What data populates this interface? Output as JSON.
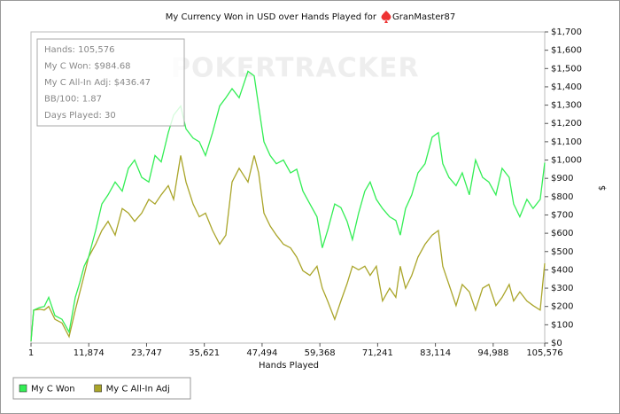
{
  "chart_data": {
    "type": "line",
    "title": "My Currency Won in USD over Hands Played for",
    "player": "GranMaster87",
    "watermark": "POKERTRACKER",
    "x_label": "Hands Played",
    "y_label": "$",
    "info": [
      "Hands: 105,576",
      "My C Won: $984.68",
      "My C All-In Adj: $436.47",
      "BB/100: 1.87",
      "Days Played: 30"
    ],
    "x": [
      1,
      546,
      1820,
      2730,
      3640,
      4914,
      6370,
      7826,
      9100,
      10010,
      10920,
      11830,
      13286,
      14560,
      15834,
      17290,
      18746,
      20020,
      21294,
      22750,
      24206,
      25480,
      26754,
      28210,
      29302,
      30758,
      31850,
      33306,
      34580,
      35854,
      37310,
      38766,
      40040,
      41314,
      42770,
      44590,
      45864,
      46774,
      47866,
      49140,
      50414,
      51870,
      53326,
      54600,
      55874,
      57330,
      58786,
      59878,
      60970,
      62426,
      63700,
      64974,
      66066,
      67340,
      68614,
      69706,
      70980,
      72254,
      73710,
      74984,
      75894,
      76986,
      78260,
      79534,
      80990,
      82446,
      83720,
      84630,
      85904,
      87360,
      88634,
      90090,
      91364,
      92820,
      94094,
      95550,
      96824,
      98280,
      99190,
      100464,
      101920,
      103194,
      104650,
      105576
    ],
    "series": [
      {
        "name": "My C Won",
        "color": "#33ee55",
        "values": [
          10,
          180,
          195,
          200,
          250,
          150,
          130,
          60,
          250,
          330,
          420,
          470,
          615,
          760,
          810,
          880,
          830,
          955,
          1000,
          905,
          880,
          1025,
          990,
          1150,
          1245,
          1295,
          1170,
          1120,
          1100,
          1025,
          1150,
          1295,
          1340,
          1390,
          1340,
          1485,
          1460,
          1295,
          1100,
          1025,
          980,
          1000,
          930,
          950,
          830,
          760,
          690,
          520,
          615,
          760,
          740,
          665,
          565,
          710,
          830,
          880,
          785,
          735,
          690,
          670,
          590,
          735,
          810,
          930,
          980,
          1125,
          1150,
          980,
          905,
          860,
          930,
          810,
          1000,
          905,
          880,
          810,
          955,
          905,
          760,
          690,
          785,
          735,
          785,
          985
        ]
      },
      {
        "name": "My C All-In Adj",
        "color": "#aaa52a",
        "values": [
          10,
          180,
          185,
          180,
          200,
          130,
          110,
          35,
          180,
          275,
          370,
          470,
          540,
          615,
          665,
          590,
          735,
          710,
          665,
          710,
          785,
          760,
          810,
          860,
          785,
          1025,
          880,
          760,
          690,
          710,
          615,
          540,
          590,
          880,
          955,
          880,
          1025,
          930,
          710,
          640,
          590,
          540,
          520,
          470,
          395,
          370,
          420,
          300,
          230,
          130,
          230,
          325,
          420,
          400,
          420,
          370,
          420,
          230,
          300,
          250,
          420,
          300,
          370,
          470,
          540,
          590,
          615,
          420,
          320,
          205,
          320,
          280,
          180,
          300,
          320,
          205,
          250,
          320,
          230,
          280,
          230,
          205,
          180,
          436
        ]
      }
    ],
    "xlim": [
      1,
      105576
    ],
    "xticks": [
      1,
      {
        "value": 11874,
        "label": "11,874"
      },
      {
        "value": 23747,
        "label": "23,747"
      },
      {
        "value": 35621,
        "label": "35,621"
      },
      {
        "value": 47494,
        "label": "47,494"
      },
      {
        "value": 59368,
        "label": "59,368"
      },
      {
        "value": 71241,
        "label": "71,241"
      },
      {
        "value": 83114,
        "label": "83,114"
      },
      {
        "value": 94988,
        "label": "94,988"
      },
      {
        "value": 105576,
        "label": "105,576"
      }
    ],
    "ylim": [
      0,
      1700
    ],
    "yticks": [
      {
        "value": 0,
        "label": "$0"
      },
      {
        "value": 100,
        "label": "$100"
      },
      {
        "value": 200,
        "label": "$200"
      },
      {
        "value": 300,
        "label": "$300"
      },
      {
        "value": 400,
        "label": "$400"
      },
      {
        "value": 500,
        "label": "$500"
      },
      {
        "value": 600,
        "label": "$600"
      },
      {
        "value": 700,
        "label": "$700"
      },
      {
        "value": 800,
        "label": "$800"
      },
      {
        "value": 900,
        "label": "$900"
      },
      {
        "value": 1000,
        "label": "$1,000"
      },
      {
        "value": 1100,
        "label": "$1,100"
      },
      {
        "value": 1200,
        "label": "$1,200"
      },
      {
        "value": 1300,
        "label": "$1,300"
      },
      {
        "value": 1400,
        "label": "$1,400"
      },
      {
        "value": 1500,
        "label": "$1,500"
      },
      {
        "value": 1600,
        "label": "$1,600"
      },
      {
        "value": 1700,
        "label": "$1,700"
      }
    ],
    "grid": false,
    "legend": "bottom-left"
  }
}
